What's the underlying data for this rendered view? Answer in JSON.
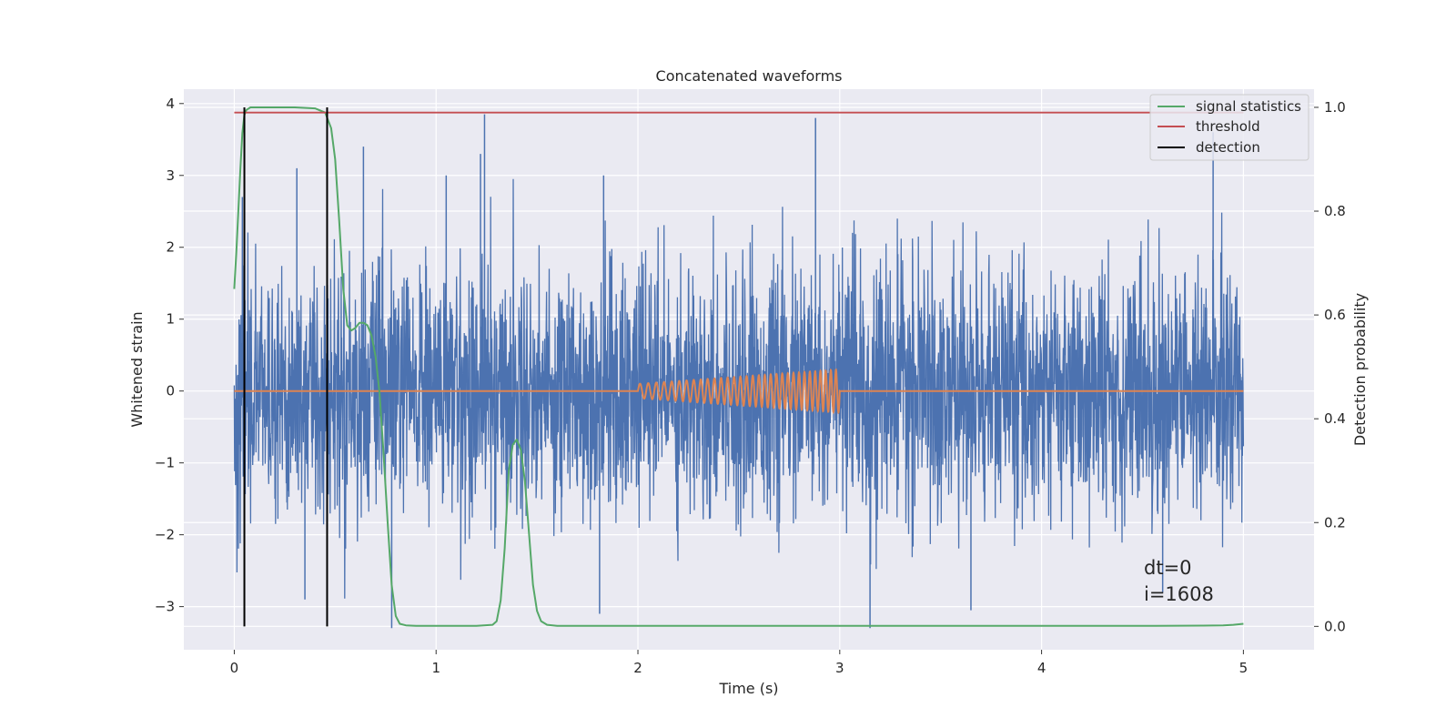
{
  "chart_data": {
    "type": "line",
    "title": "Concatenated waveforms",
    "xlabel": "Time (s)",
    "ylabel": "Whitened strain",
    "y2label": "Detection probability",
    "xlim": [
      -0.25,
      5.35
    ],
    "ylim": [
      -3.6,
      4.2
    ],
    "y2lim": [
      -0.045,
      1.035
    ],
    "xticks": [
      0,
      1,
      2,
      3,
      4,
      5
    ],
    "xtick_labels": [
      "0",
      "1",
      "2",
      "3",
      "4",
      "5"
    ],
    "yticks": [
      -3,
      -2,
      -1,
      0,
      1,
      2,
      3,
      4
    ],
    "ytick_labels": [
      "−3",
      "−2",
      "−1",
      "0",
      "1",
      "2",
      "3",
      "4"
    ],
    "y2ticks": [
      0.0,
      0.2,
      0.4,
      0.6,
      0.8,
      1.0
    ],
    "y2tick_labels": [
      "0.0",
      "0.2",
      "0.4",
      "0.6",
      "0.8",
      "1.0"
    ],
    "grid": true,
    "legend_position": "top-right",
    "legend": [
      {
        "label": "signal statistics",
        "color": "#55a868"
      },
      {
        "label": "threshold",
        "color": "#c44e52"
      },
      {
        "label": "detection",
        "color": "#000000"
      }
    ],
    "series": [
      {
        "role": "whitened strain noise",
        "axis": "left",
        "color": "#4c72b0",
        "x_range": [
          0,
          5
        ],
        "typical_amplitude": 1.0,
        "spikes": [
          {
            "x": 1.24,
            "y": 3.85
          },
          {
            "x": 2.88,
            "y": 3.8
          },
          {
            "x": 4.85,
            "y": 3.6
          },
          {
            "x": 0.64,
            "y": 3.4
          },
          {
            "x": 1.22,
            "y": 3.3
          },
          {
            "x": 0.31,
            "y": 3.1
          },
          {
            "x": 0.04,
            "y": 2.7
          },
          {
            "x": 1.05,
            "y": 3.0
          },
          {
            "x": 1.83,
            "y": 3.0
          },
          {
            "x": 3.15,
            "y": -3.3
          },
          {
            "x": 1.81,
            "y": -3.1
          },
          {
            "x": 0.78,
            "y": -3.3
          },
          {
            "x": 0.35,
            "y": -2.9
          },
          {
            "x": 3.65,
            "y": -3.05
          },
          {
            "x": 4.6,
            "y": -2.8
          }
        ]
      },
      {
        "role": "injected chirp",
        "axis": "left",
        "color": "#dd8452",
        "x": [
          0,
          2.0,
          3.0,
          5.0
        ],
        "amplitude_start": 0.1,
        "amplitude_end": 0.3,
        "start_frequency_hz": 24,
        "end_frequency_hz": 40
      },
      {
        "name": "signal statistics",
        "axis": "right",
        "color": "#55a868",
        "x": [
          0,
          0.01,
          0.02,
          0.03,
          0.04,
          0.05,
          0.06,
          0.08,
          0.1,
          0.2,
          0.3,
          0.4,
          0.45,
          0.48,
          0.5,
          0.52,
          0.54,
          0.56,
          0.58,
          0.6,
          0.62,
          0.64,
          0.66,
          0.68,
          0.7,
          0.72,
          0.74,
          0.76,
          0.78,
          0.8,
          0.82,
          0.85,
          0.9,
          1.0,
          1.2,
          1.28,
          1.3,
          1.32,
          1.34,
          1.36,
          1.38,
          1.4,
          1.42,
          1.44,
          1.46,
          1.48,
          1.5,
          1.52,
          1.55,
          1.6,
          2.0,
          3.0,
          4.0,
          4.5,
          4.8,
          4.9,
          4.95,
          5.0
        ],
        "y": [
          0.65,
          0.72,
          0.8,
          0.88,
          0.95,
          0.985,
          0.995,
          1.0,
          1.0,
          1.0,
          1.0,
          0.998,
          0.99,
          0.96,
          0.9,
          0.78,
          0.65,
          0.58,
          0.57,
          0.575,
          0.585,
          0.585,
          0.58,
          0.56,
          0.52,
          0.45,
          0.33,
          0.2,
          0.08,
          0.02,
          0.005,
          0.002,
          0.001,
          0.001,
          0.001,
          0.003,
          0.01,
          0.05,
          0.15,
          0.3,
          0.35,
          0.36,
          0.34,
          0.28,
          0.18,
          0.08,
          0.03,
          0.01,
          0.003,
          0.001,
          0.001,
          0.001,
          0.001,
          0.001,
          0.0015,
          0.002,
          0.003,
          0.005
        ]
      },
      {
        "name": "threshold",
        "axis": "right",
        "color": "#c44e52",
        "x": [
          0,
          5
        ],
        "y": [
          0.99,
          0.99
        ]
      }
    ],
    "detections": [
      0.05,
      0.46
    ],
    "annotations": [
      "dt=0",
      "i=1608"
    ]
  }
}
